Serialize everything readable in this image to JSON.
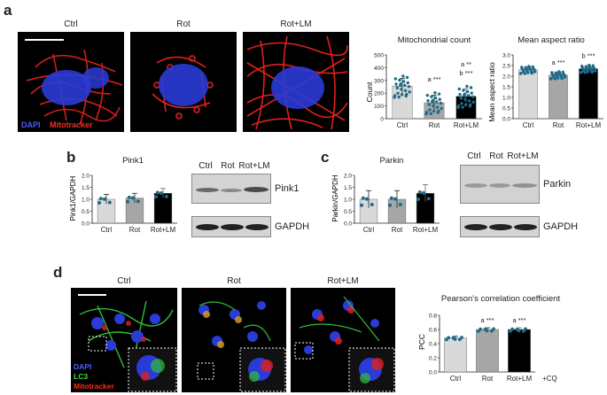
{
  "panels": {
    "a": {
      "label": "a",
      "conditions": [
        "Ctrl",
        "Rot",
        "Rot+LM"
      ],
      "stain_blue": "DAPI",
      "stain_red": "Mitotracker",
      "count_chart": {
        "type": "scatter",
        "title": "Mitochondrial count",
        "ylabel": "Count",
        "categories": [
          "Ctrl",
          "Rot",
          "Rot+LM"
        ],
        "means": [
          255,
          125,
          175
        ],
        "ylim": [
          0,
          500
        ],
        "yticks": [
          "0",
          "100",
          "200",
          "300",
          "400",
          "500"
        ],
        "sig_top": [
          "",
          "",
          "a **"
        ],
        "sig_mid": [
          "",
          "a ***",
          "b ***"
        ]
      },
      "aspect_chart": {
        "type": "scatter",
        "title": "Mean aspect ratio",
        "ylabel": "Mean aspect ratio",
        "categories": [
          "Ctrl",
          "Rot",
          "Rot+LM"
        ],
        "means": [
          2.3,
          2.05,
          2.35
        ],
        "ylim": [
          0,
          3.0
        ],
        "yticks": [
          "0.0",
          "0.5",
          "1.0",
          "1.5",
          "2.0",
          "2.5",
          "3.0"
        ],
        "sig": [
          "",
          "a ***",
          "b ***"
        ]
      }
    },
    "b": {
      "label": "b",
      "title": "Pink1",
      "ylabel": "Pink1/GAPDH",
      "chart": {
        "type": "bar",
        "categories": [
          "Ctrl",
          "Rot",
          "Rot+LM"
        ],
        "values": [
          1.0,
          1.05,
          1.25
        ],
        "ylim": [
          0,
          2.0
        ],
        "yticks": [
          "0.0",
          "0.5",
          "1.0",
          "1.5",
          "2.0"
        ]
      },
      "blot_lanes": [
        "Ctrl",
        "Rot",
        "Rot+LM"
      ],
      "blot_rows": [
        "Pink1",
        "GAPDH"
      ]
    },
    "c": {
      "label": "c",
      "title": "Parkin",
      "ylabel": "Parkin/GAPDH",
      "chart": {
        "type": "bar",
        "categories": [
          "Ctrl",
          "Rot",
          "Rot+LM"
        ],
        "values": [
          1.0,
          1.0,
          1.25
        ],
        "ylim": [
          0,
          2.0
        ],
        "yticks": [
          "0.0",
          "0.5",
          "1.0",
          "1.5",
          "2.0"
        ]
      },
      "blot_lanes": [
        "Ctrl",
        "Rot",
        "Rot+LM"
      ],
      "blot_rows": [
        "Parkin",
        "GAPDH"
      ]
    },
    "d": {
      "label": "d",
      "conditions": [
        "Ctrl",
        "Rot",
        "Rot+LM"
      ],
      "stain_blue": "DAPI",
      "stain_green": "LC3",
      "stain_red": "Mitotracker",
      "chart": {
        "type": "bar",
        "title": "Pearson's correlation coefficient",
        "ylabel": "PCC",
        "categories": [
          "Ctrl",
          "Rot",
          "Rot+LM"
        ],
        "values": [
          0.48,
          0.6,
          0.6
        ],
        "ylim": [
          0,
          0.8
        ],
        "yticks": [
          "0.0",
          "0.2",
          "0.4",
          "0.6",
          "0.8"
        ],
        "sig": [
          "",
          "a ***",
          "a ***"
        ],
        "extra_label": "+CQ"
      }
    }
  },
  "colors": {
    "ctrl_bar": "#d9d9d9",
    "rot_bar": "#a6a6a6",
    "rotlm_bar": "#000000",
    "dot": "#1f6b8a",
    "mito_red": "#e0201c",
    "dapi_blue": "#2a3bd6",
    "lc3_green": "#2fbf3a"
  }
}
